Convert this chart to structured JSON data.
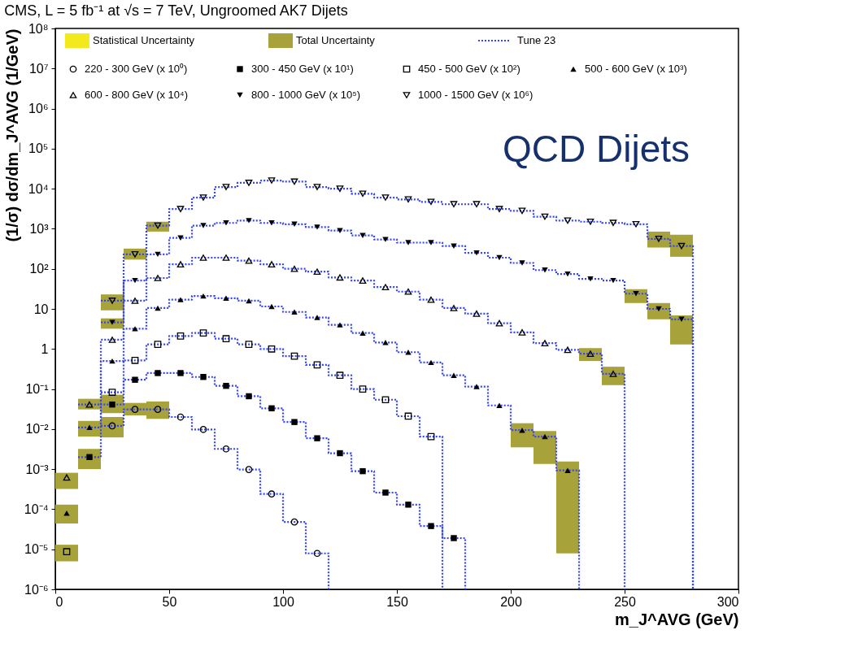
{
  "chart_data": {
    "type": "scatter",
    "title": "CMS, L = 5 fb⁻¹ at √s = 7 TeV, Ungroomed AK7 Dijets",
    "xlabel": "m_J^AVG (GeV)",
    "ylabel": "(1/σ) dσ/dm_J^AVG (1/GeV)",
    "log": "y",
    "xlim": [
      0,
      300
    ],
    "xticks": [
      0,
      50,
      100,
      150,
      200,
      250,
      300
    ],
    "ylim": [
      1e-06,
      100000000.0
    ],
    "yticks": [
      {
        "value": 1e-06,
        "label": "10⁻⁶"
      },
      {
        "value": 1e-05,
        "label": "10⁻⁵"
      },
      {
        "value": 0.0001,
        "label": "10⁻⁴"
      },
      {
        "value": 0.001,
        "label": "10⁻³"
      },
      {
        "value": 0.01,
        "label": "10⁻²"
      },
      {
        "value": 0.1,
        "label": "10⁻¹"
      },
      1,
      10,
      {
        "value": 100,
        "label": "10²"
      },
      {
        "value": 1000,
        "label": "10³"
      },
      {
        "value": 10000,
        "label": "10⁴"
      },
      {
        "value": 100000,
        "label": "10⁵"
      },
      {
        "value": 1000000,
        "label": "10⁶"
      },
      {
        "value": 10000000,
        "label": "10⁷"
      },
      {
        "value": 100000000,
        "label": "10⁸"
      }
    ],
    "grid": false,
    "legend": "top",
    "annotations": [
      "Statistical Uncertainty",
      "Total Uncertainty",
      "QCD Dijets"
    ],
    "series": [
      {
        "name": "220 - 300 GeV (x 10⁰)",
        "marker": "circle-open",
        "color": "#000000",
        "x": [
          25,
          35,
          45,
          55,
          65,
          75,
          85,
          95,
          105,
          115
        ],
        "values": [
          0.012,
          0.031,
          0.031,
          0.02,
          0.0098,
          0.0032,
          0.00098,
          0.00024,
          4.8e-05,
          7.9e-06
        ],
        "errors": [
          [
            0.0062,
            0.02
          ],
          [
            0.022,
            0.045
          ],
          [
            0.018,
            0.049
          ],
          null,
          null,
          null,
          null,
          null,
          null,
          null
        ]
      },
      {
        "name": "300 - 450 GeV (x 10¹)",
        "marker": "square",
        "color": "#000000",
        "x": [
          15,
          25,
          35,
          45,
          55,
          65,
          75,
          85,
          95,
          105,
          115,
          125,
          135,
          145,
          155,
          165,
          175
        ],
        "values": [
          0.002,
          0.041,
          0.17,
          0.25,
          0.25,
          0.2,
          0.12,
          0.066,
          0.033,
          0.015,
          0.0059,
          0.0025,
          0.00089,
          0.00026,
          0.00013,
          3.8e-05,
          1.9e-05
        ],
        "errors": [
          [
            0.001,
            0.0032
          ],
          [
            0.025,
            0.072
          ],
          null,
          null,
          null,
          null,
          null,
          null,
          null,
          null,
          null,
          null,
          null,
          null,
          null,
          null,
          null
        ]
      },
      {
        "name": "450 - 500 GeV (x 10²)",
        "marker": "square-open",
        "color": "#000000",
        "x": [
          5,
          25,
          35,
          45,
          55,
          65,
          75,
          85,
          95,
          105,
          115,
          125,
          135,
          145,
          155,
          165
        ],
        "values": [
          8.7e-06,
          0.083,
          0.52,
          1.3,
          2.1,
          2.5,
          1.8,
          1.3,
          1.0,
          0.66,
          0.4,
          0.22,
          0.1,
          0.054,
          0.021,
          0.0065
        ],
        "errors": [
          [
            5e-06,
            1.3e-05
          ],
          null,
          null,
          null,
          null,
          null,
          null,
          null,
          null,
          null,
          null,
          null,
          null,
          null,
          null,
          null
        ]
      },
      {
        "name": "500 - 600 GeV (x 10³)",
        "marker": "triangle",
        "color": "#000000",
        "x": [
          5,
          15,
          25,
          35,
          45,
          55,
          65,
          75,
          85,
          95,
          105,
          115,
          125,
          135,
          145,
          155,
          165,
          175,
          185,
          195,
          205,
          215,
          225
        ],
        "values": [
          8e-05,
          0.011,
          0.5,
          3.2,
          10.5,
          17,
          21,
          18.5,
          16,
          11.5,
          8.4,
          6.1,
          4.0,
          2.5,
          1.45,
          0.83,
          0.46,
          0.22,
          0.115,
          0.039,
          0.0094,
          0.0065,
          0.00093
        ],
        "errors": [
          [
            4.4e-05,
            0.00013
          ],
          [
            0.0065,
            0.016
          ],
          null,
          null,
          null,
          null,
          null,
          null,
          null,
          null,
          null,
          null,
          null,
          null,
          null,
          null,
          null,
          null,
          null,
          null,
          [
            0.0035,
            0.014
          ],
          [
            0.00135,
            0.0089
          ],
          [
            7.9e-06,
            0.00155
          ]
        ]
      },
      {
        "name": "600 - 800 GeV (x 10⁴)",
        "marker": "triangle-open",
        "color": "#000000",
        "x": [
          5,
          15,
          25,
          35,
          45,
          55,
          65,
          75,
          85,
          95,
          105,
          115,
          125,
          135,
          145,
          155,
          165,
          175,
          185,
          195,
          205,
          215,
          225,
          235,
          245
        ],
        "values": [
          0.00062,
          0.041,
          1.7,
          16,
          59,
          130,
          190,
          190,
          160,
          130,
          100,
          85,
          61,
          51,
          35,
          27,
          17,
          10.5,
          7.6,
          4.4,
          2.6,
          1.4,
          0.95,
          0.76,
          0.24
        ],
        "errors": [
          [
            0.00032,
            0.00081
          ],
          [
            0.031,
            0.057
          ],
          null,
          null,
          null,
          null,
          null,
          null,
          null,
          null,
          null,
          null,
          null,
          null,
          null,
          null,
          null,
          null,
          null,
          null,
          null,
          null,
          null,
          [
            0.5,
            1.05
          ],
          [
            0.125,
            0.36
          ]
        ]
      },
      {
        "name": "800 - 1000 GeV (x 10⁵)",
        "marker": "triangle-down",
        "color": "#000000",
        "x": [
          25,
          35,
          45,
          55,
          65,
          75,
          85,
          95,
          105,
          115,
          125,
          135,
          145,
          155,
          165,
          175,
          185,
          195,
          205,
          215,
          225,
          235,
          245,
          255,
          265,
          275
        ],
        "values": [
          4.6,
          51,
          230,
          590,
          1200,
          1400,
          1600,
          1400,
          1300,
          1100,
          900,
          680,
          540,
          450,
          450,
          370,
          250,
          190,
          140,
          93,
          74,
          56,
          51,
          24,
          10,
          5.5
        ],
        "errors": [
          [
            3.2,
            5.8
          ],
          null,
          null,
          null,
          null,
          null,
          null,
          null,
          null,
          null,
          null,
          null,
          null,
          null,
          null,
          null,
          null,
          null,
          null,
          null,
          null,
          null,
          null,
          [
            14,
            31
          ],
          [
            5.5,
            14
          ],
          [
            1.3,
            6.9
          ]
        ]
      },
      {
        "name": "1000 - 1500 GeV (x 10⁶)",
        "marker": "triangle-down-open",
        "color": "#000000",
        "x": [
          25,
          35,
          45,
          55,
          65,
          75,
          85,
          95,
          105,
          115,
          125,
          135,
          145,
          155,
          165,
          175,
          185,
          195,
          205,
          215,
          225,
          235,
          245,
          255,
          265,
          275
        ],
        "values": [
          16,
          230,
          1200,
          3100,
          6000,
          11000,
          14000,
          16000,
          15000,
          11000,
          10000,
          7500,
          6000,
          5400,
          4700,
          4100,
          4100,
          3100,
          2800,
          2000,
          1600,
          1500,
          1400,
          1300,
          560,
          370
        ],
        "errors": [
          [
            9.2,
            23
          ],
          [
            170,
            320
          ],
          [
            850,
            1500
          ],
          null,
          null,
          null,
          null,
          null,
          null,
          null,
          null,
          null,
          null,
          null,
          null,
          null,
          null,
          null,
          null,
          null,
          null,
          null,
          null,
          null,
          [
            340,
            850
          ],
          [
            200,
            710
          ]
        ]
      },
      {
        "name": "Tune 23",
        "type": "step",
        "line_style": "dotted",
        "color": "#3344ff",
        "x": [
          20,
          30,
          40,
          50,
          60,
          70,
          80,
          90,
          100,
          110,
          120
        ],
        "values": [
          0.012,
          0.031,
          0.031,
          0.02,
          0.0098,
          0.0032,
          0.00098,
          0.00024,
          4.8e-05,
          7.9e-06,
          1e-06
        ]
      },
      {
        "type": "step",
        "line_style": "dotted",
        "color": "#3344ff",
        "x": [
          10,
          20,
          30,
          40,
          50,
          60,
          70,
          80,
          90,
          100,
          110,
          120,
          130,
          140,
          150,
          160,
          170,
          180
        ],
        "values": [
          0.002,
          0.041,
          0.17,
          0.25,
          0.25,
          0.2,
          0.12,
          0.066,
          0.033,
          0.015,
          0.0059,
          0.0025,
          0.00089,
          0.00026,
          0.00013,
          3.8e-05,
          1.9e-05,
          1e-06
        ]
      },
      {
        "type": "step",
        "line_style": "dotted",
        "color": "#3344ff",
        "x": [
          20,
          30,
          40,
          50,
          60,
          70,
          80,
          90,
          100,
          110,
          120,
          130,
          140,
          150,
          160,
          170
        ],
        "values": [
          0.083,
          0.52,
          1.3,
          2.1,
          2.5,
          1.8,
          1.3,
          1.0,
          0.66,
          0.4,
          0.22,
          0.1,
          0.054,
          0.021,
          0.0065,
          1e-06
        ]
      },
      {
        "type": "step",
        "line_style": "dotted",
        "color": "#3344ff",
        "x": [
          10,
          20,
          30,
          40,
          50,
          60,
          70,
          80,
          90,
          100,
          110,
          120,
          130,
          140,
          150,
          160,
          170,
          180,
          190,
          200,
          210,
          220,
          230
        ],
        "values": [
          0.011,
          0.5,
          3.2,
          10.5,
          17,
          21,
          18.5,
          16,
          11.5,
          8.4,
          6.1,
          4.0,
          2.5,
          1.45,
          0.83,
          0.46,
          0.22,
          0.115,
          0.039,
          0.0094,
          0.0065,
          0.00093,
          1e-06
        ]
      },
      {
        "type": "step",
        "line_style": "dotted",
        "color": "#3344ff",
        "x": [
          10,
          20,
          30,
          40,
          50,
          60,
          70,
          80,
          90,
          100,
          110,
          120,
          130,
          140,
          150,
          160,
          170,
          180,
          190,
          200,
          210,
          220,
          230,
          240,
          250
        ],
        "values": [
          0.041,
          1.7,
          16,
          59,
          130,
          190,
          190,
          160,
          130,
          100,
          85,
          61,
          51,
          35,
          27,
          17,
          10.5,
          7.6,
          4.4,
          2.6,
          1.4,
          0.95,
          0.76,
          0.24,
          1e-06
        ]
      },
      {
        "type": "step",
        "line_style": "dotted",
        "color": "#3344ff",
        "x": [
          20,
          30,
          40,
          50,
          60,
          70,
          80,
          90,
          100,
          110,
          120,
          130,
          140,
          150,
          160,
          170,
          180,
          190,
          200,
          210,
          220,
          230,
          240,
          250,
          260,
          270,
          280
        ],
        "values": [
          4.6,
          51,
          230,
          590,
          1200,
          1400,
          1600,
          1400,
          1300,
          1100,
          900,
          680,
          540,
          450,
          450,
          370,
          250,
          190,
          140,
          93,
          74,
          56,
          51,
          24,
          10,
          5.5,
          1e-06
        ]
      },
      {
        "type": "step",
        "line_style": "dotted",
        "color": "#3344ff",
        "x": [
          20,
          30,
          40,
          50,
          60,
          70,
          80,
          90,
          100,
          110,
          120,
          130,
          140,
          150,
          160,
          170,
          180,
          190,
          200,
          210,
          220,
          230,
          240,
          250,
          260,
          270,
          280
        ],
        "values": [
          16,
          230,
          1200,
          3100,
          6000,
          11000,
          14000,
          16000,
          15000,
          11000,
          10000,
          7500,
          6000,
          5400,
          4700,
          4100,
          4100,
          3100,
          2800,
          2000,
          1600,
          1500,
          1400,
          1300,
          560,
          370,
          1e-06
        ]
      }
    ]
  }
}
